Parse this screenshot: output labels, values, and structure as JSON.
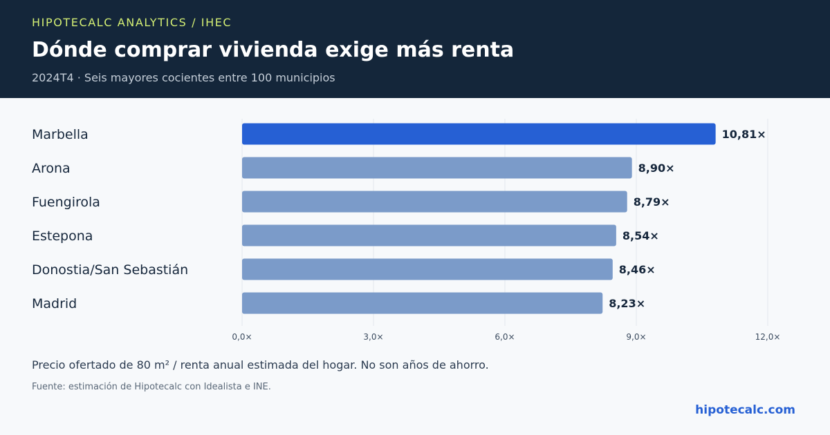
{
  "header": {
    "kicker": "HIPOTECALC ANALYTICS / IHEC",
    "title": "Dónde comprar vivienda exige más renta",
    "subtitle": "2024T4 · Seis mayores cocientes entre 100 municipios"
  },
  "chart_data": {
    "type": "bar",
    "orientation": "horizontal",
    "title": "Dónde comprar vivienda exige más renta",
    "subtitle": "2024T4 · Seis mayores cocientes entre 100 municipios",
    "categories": [
      "Marbella",
      "Arona",
      "Fuengirola",
      "Estepona",
      "Donostia/San Sebastián",
      "Madrid"
    ],
    "values": [
      10.81,
      8.9,
      8.79,
      8.54,
      8.46,
      8.23
    ],
    "value_labels": [
      "10,81×",
      "8,90×",
      "8,79×",
      "8,54×",
      "8,46×",
      "8,23×"
    ],
    "xlim": [
      0,
      12
    ],
    "x_ticks": [
      0,
      3,
      6,
      9,
      12
    ],
    "x_tick_labels": [
      "0,0×",
      "3,0×",
      "6,0×",
      "9,0×",
      "12,0×"
    ],
    "grid": true,
    "highlight_index": 0,
    "colors": {
      "highlight": "#2660d4",
      "default": "#7b9bc9",
      "grid": "#e3e8ee"
    }
  },
  "footer": {
    "note": "Precio ofertado de 80 m² / renta anual estimada del hogar. No son años de ahorro.",
    "source": "Fuente: estimación de Hipotecalc con Idealista e INE.",
    "brand": "hipotecalc.com"
  }
}
